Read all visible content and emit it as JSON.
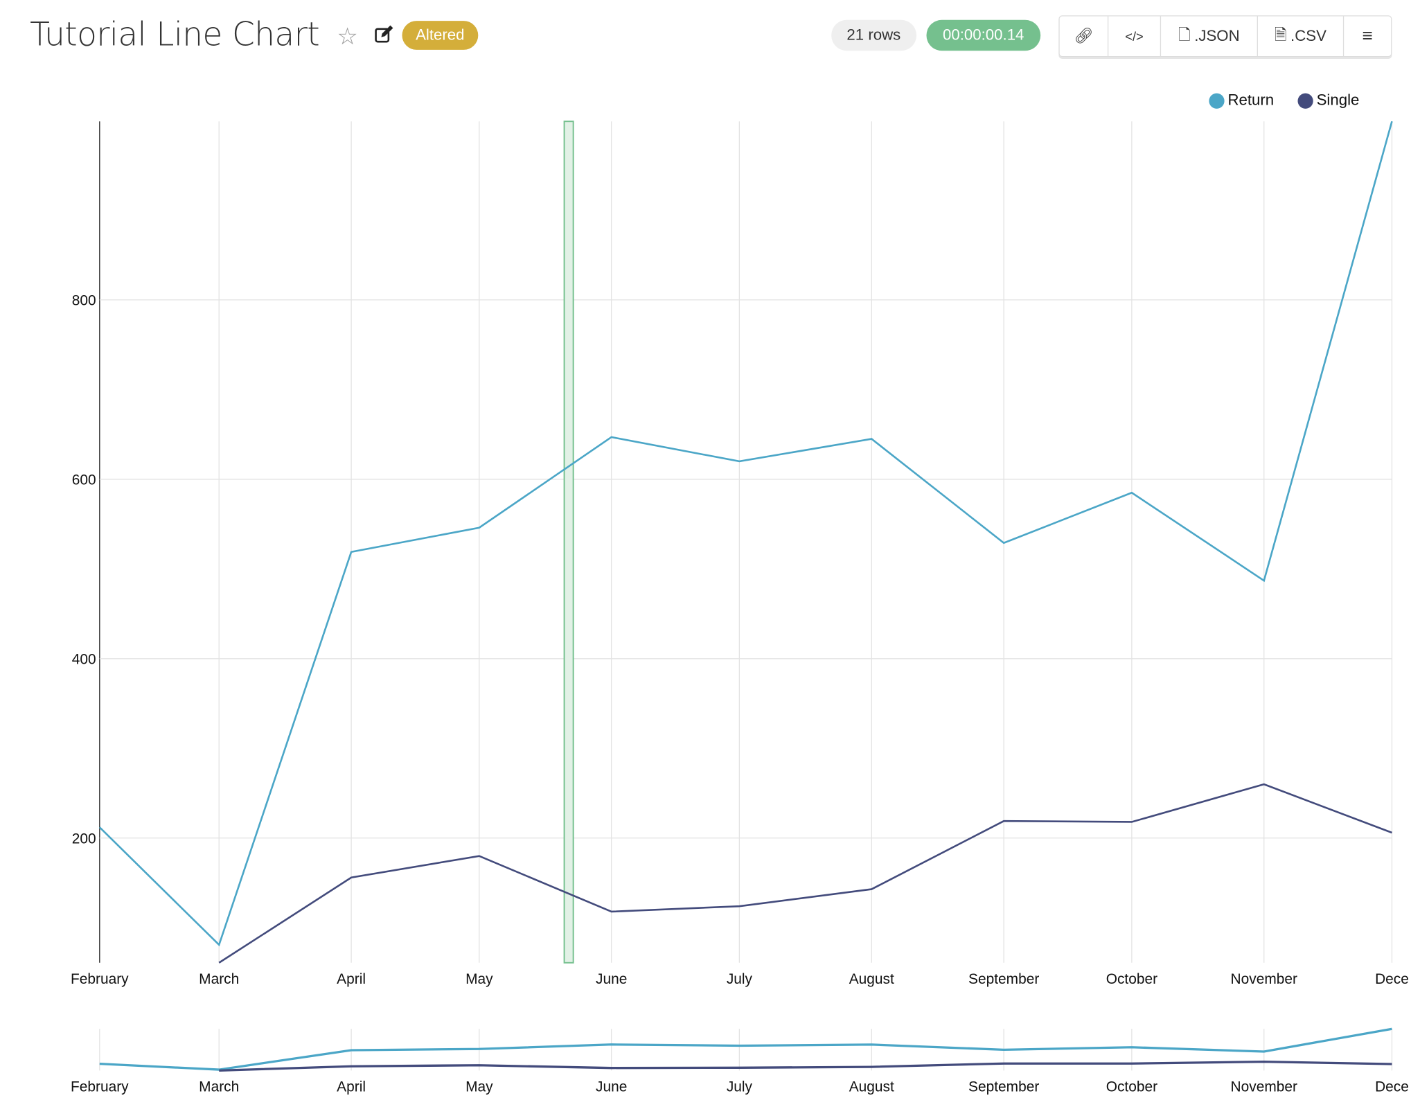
{
  "header": {
    "title": "Tutorial Line Chart",
    "star_icon": "star-icon",
    "edit_icon": "edit-icon",
    "status_badge": "Altered",
    "rows": "21 rows",
    "timer": "00:00:00.14",
    "buttons": {
      "link_icon": "link-icon",
      "embed_icon": "code-icon",
      "json": ".JSON",
      "csv": ".CSV",
      "menu_icon": "hamburger-icon"
    }
  },
  "colors": {
    "return": "#4ba6c7",
    "single": "#434b7c",
    "badge": "#d4ae3a",
    "timer": "#75c08e",
    "brush": "#75c08e"
  },
  "chart_data": {
    "type": "line",
    "title": "",
    "xlabel": "",
    "ylabel": "",
    "x": [
      "2022-02-01",
      "2022-03-01",
      "2022-04-01",
      "2022-05-01",
      "2022-06-01",
      "2022-07-01",
      "2022-08-01",
      "2022-09-01",
      "2022-10-01",
      "2022-11-01",
      "2022-12-01"
    ],
    "x_tick_labels": [
      "February",
      "March",
      "April",
      "May",
      "June",
      "July",
      "August",
      "September",
      "October",
      "November",
      "Dece"
    ],
    "series": [
      {
        "name": "Return",
        "values": [
          212,
          81,
          519,
          546,
          647,
          620,
          645,
          529,
          585,
          487,
          999
        ]
      },
      {
        "name": "Single",
        "values": [
          null,
          61,
          156,
          180,
          118,
          124,
          143,
          219,
          218,
          260,
          206
        ]
      }
    ],
    "ylim": [
      61,
      999
    ],
    "y_ticks": [
      200,
      400,
      600,
      800
    ],
    "grid": true,
    "legend": "top-right",
    "highlight_date": "2022-05-22",
    "overview_chart": true
  }
}
